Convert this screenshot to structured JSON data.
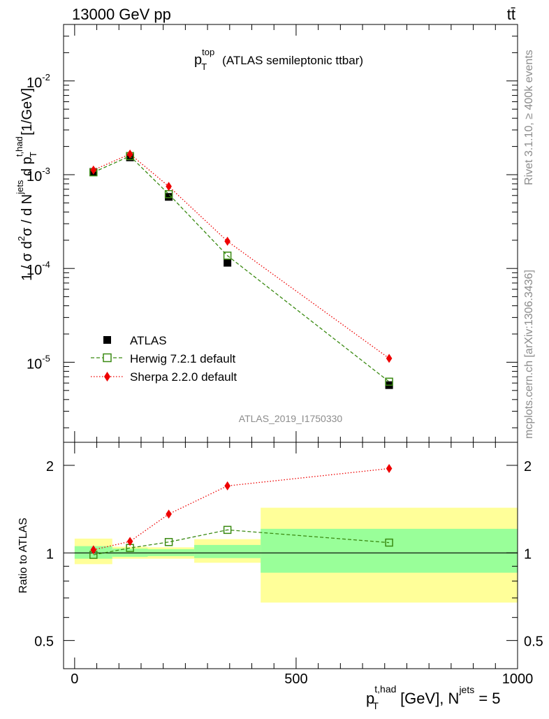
{
  "header": {
    "left": "13000 GeV pp",
    "right": "tt̄"
  },
  "side_labels": {
    "rivet": "Rivet 3.1.10, ≥ 400k events",
    "mcplots": "mcplots.cern.ch [arXiv:1306.3436]"
  },
  "watermark": "ATLAS_2019_I1750330",
  "chart_data": [
    {
      "type": "scatter",
      "panel": "main",
      "title": {
        "p": "p",
        "sup": "top",
        "sub": "T",
        "rest": "(ATLAS semileptonic ttbar)"
      },
      "ylabel": {
        "a": "1 / σ d",
        "b": "2",
        "c": "σ /  d N",
        "d": "jets",
        "e": " d p",
        "f": "t,had",
        "g": "T",
        "h": " [1/GeV]"
      },
      "yscale": "log",
      "ylim": [
        1.4e-06,
        0.04
      ],
      "xlim": [
        -25,
        1000
      ],
      "y_ticks": [
        {
          "v": 0.01,
          "mant": "10",
          "exp": "-2"
        },
        {
          "v": 0.001,
          "mant": "10",
          "exp": "-3"
        },
        {
          "v": 0.0001,
          "mant": "10",
          "exp": "-4"
        },
        {
          "v": 1e-05,
          "mant": "10",
          "exp": "-5"
        }
      ],
      "legend_position": "lower-left",
      "series": [
        {
          "name": "ATLAS",
          "marker": "square-filled",
          "color": "#000000",
          "x": [
            42.5,
            125,
            212.5,
            345,
            710
          ],
          "y": [
            0.00107,
            0.00153,
            0.00058,
            0.000115,
            5.7e-06
          ]
        },
        {
          "name": "Herwig 7.2.1 default",
          "marker": "square-open",
          "color": "#3a8a12",
          "line": "dashed",
          "x": [
            42.5,
            125,
            212.5,
            345,
            710
          ],
          "y": [
            0.00106,
            0.00158,
            0.00062,
            0.000137,
            6.2e-06
          ]
        },
        {
          "name": "Sherpa 2.2.0 default",
          "marker": "diamond",
          "color": "#ee0000",
          "line": "dotted",
          "x": [
            42.5,
            125,
            212.5,
            345,
            710
          ],
          "y": [
            0.00112,
            0.00166,
            0.00075,
            0.000195,
            1.1e-05
          ]
        }
      ]
    },
    {
      "type": "scatter",
      "panel": "ratio",
      "ylabel": "Ratio to ATLAS",
      "yscale": "log",
      "ylim": [
        0.4,
        2.4
      ],
      "xlim": [
        -25,
        1000
      ],
      "y_ticks": [
        {
          "v": 0.5,
          "label": "0.5"
        },
        {
          "v": 1,
          "label": "1"
        },
        {
          "v": 2,
          "label": "2"
        }
      ],
      "x_ticks": [
        {
          "v": 0,
          "label": "0"
        },
        {
          "v": 500,
          "label": "500"
        },
        {
          "v": 1000,
          "label": "1000"
        }
      ],
      "xlabel": {
        "p": "p",
        "sup": "t,had",
        "sub": "T",
        "rest": " [GeV], N",
        "jsup": "jets",
        "tail": " = 5"
      },
      "bands": [
        {
          "x0": 0,
          "x1": 85,
          "yellow": [
            0.915,
            1.12
          ],
          "green": [
            0.955,
            1.055
          ]
        },
        {
          "x0": 85,
          "x1": 165,
          "yellow": [
            0.955,
            1.05
          ],
          "green": [
            0.97,
            1.035
          ]
        },
        {
          "x0": 165,
          "x1": 270,
          "yellow": [
            0.955,
            1.045
          ],
          "green": [
            0.975,
            1.03
          ]
        },
        {
          "x0": 270,
          "x1": 420,
          "yellow": [
            0.925,
            1.115
          ],
          "green": [
            0.96,
            1.065
          ]
        },
        {
          "x0": 420,
          "x1": 1000,
          "yellow": [
            0.675,
            1.43
          ],
          "green": [
            0.855,
            1.21
          ]
        }
      ],
      "series": [
        {
          "name": "Herwig 7.2.1 default",
          "marker": "square-open",
          "color": "#3a8a12",
          "line": "dashed",
          "x": [
            42.5,
            125,
            212.5,
            345,
            710
          ],
          "y": [
            0.985,
            1.04,
            1.09,
            1.2,
            1.085
          ]
        },
        {
          "name": "Sherpa 2.2.0 default",
          "marker": "diamond",
          "color": "#ee0000",
          "line": "dotted",
          "x": [
            42.5,
            125,
            212.5,
            345,
            710
          ],
          "y": [
            1.025,
            1.095,
            1.36,
            1.7,
            1.95
          ]
        }
      ]
    }
  ]
}
